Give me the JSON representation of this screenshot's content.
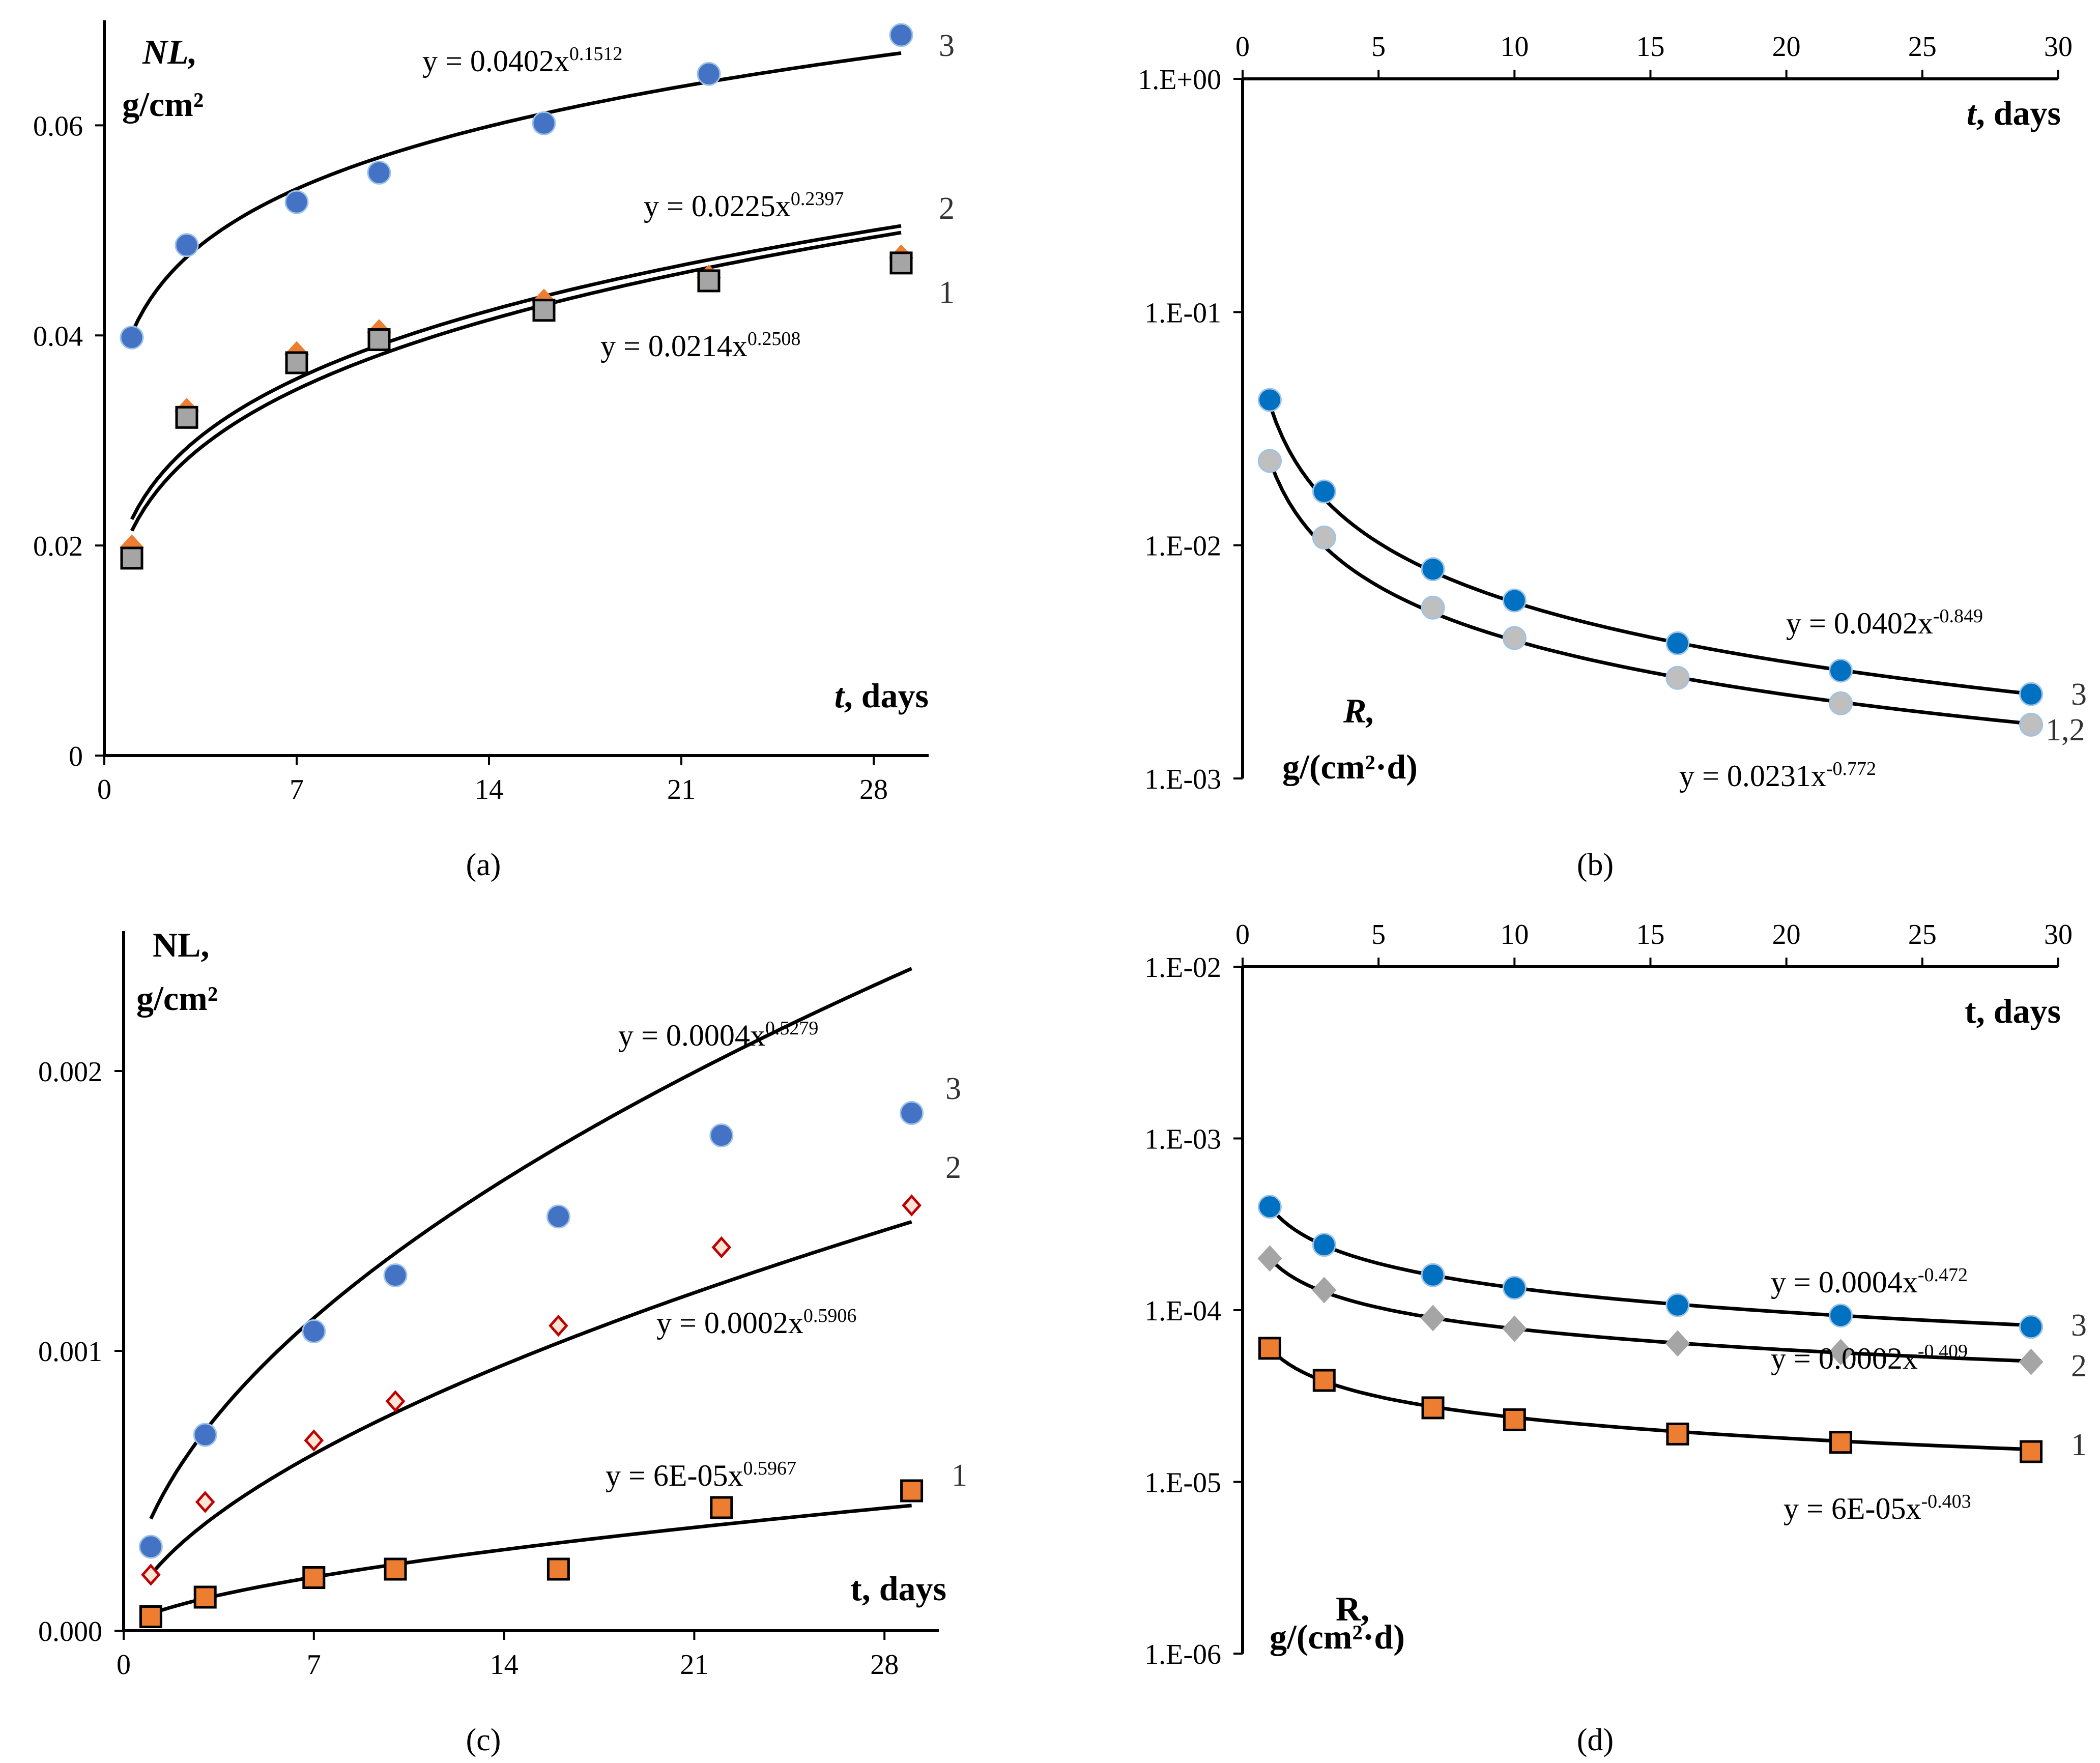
{
  "figure": {
    "panels": [
      {
        "id": "a",
        "caption": "(a)",
        "x_axis_title": "days",
        "x_axis_var": "t",
        "y_axis_title_line1": "NL,",
        "y_axis_title_line2": "g/cm²",
        "series_numbers": [
          "3",
          "2",
          "1"
        ],
        "equations": [
          {
            "base": "y = 0.0402x",
            "exp": "0.1512"
          },
          {
            "base": "y = 0.0225x",
            "exp": "0.2397"
          },
          {
            "base": "y = 0.0214x",
            "exp": "0.2508"
          }
        ]
      },
      {
        "id": "b",
        "caption": "(b)",
        "x_axis_title": "days",
        "x_axis_var": "t",
        "y_axis_title_line1": "R,",
        "y_axis_title_line2": "g/(cm²·d)",
        "series_numbers": [
          "3",
          "1,2"
        ],
        "equations": [
          {
            "base": "y = 0.0402x",
            "exp": "-0.849"
          },
          {
            "base": "y = 0.0231x",
            "exp": "-0.772"
          }
        ]
      },
      {
        "id": "c",
        "caption": "(c)",
        "x_axis_title": "t, days",
        "y_axis_title_line1": "NL,",
        "y_axis_title_line2": "g/cm²",
        "series_numbers": [
          "3",
          "2",
          "1"
        ],
        "equations": [
          {
            "base": "y = 0.0004x",
            "exp": "0.5279"
          },
          {
            "base": "y = 0.0002x",
            "exp": "0.5906"
          },
          {
            "base": "y = 6E-05x",
            "exp": "0.5967"
          }
        ]
      },
      {
        "id": "d",
        "caption": "(d)",
        "x_axis_title": "t, days",
        "y_axis_title_line1": "R,",
        "y_axis_title_line2": "g/(cm²·d)",
        "series_numbers": [
          "3",
          "2",
          "1"
        ],
        "equations": [
          {
            "base": "y = 0.0004x",
            "exp": "-0.472"
          },
          {
            "base": "y = 0.0002x",
            "exp": "-0.409"
          },
          {
            "base": "y = 6E-05x",
            "exp": "-0.403"
          }
        ]
      }
    ]
  },
  "chart_data": [
    {
      "panel": "a",
      "type": "scatter",
      "xlim": [
        0,
        30
      ],
      "ylim": [
        0,
        0.07
      ],
      "x_ticks": [
        "0",
        "7",
        "14",
        "21",
        "28"
      ],
      "y_ticks": [
        "0",
        "0.02",
        "0.04",
        "0.06"
      ],
      "scale": "linear",
      "series": [
        {
          "name": "3",
          "marker": "circle",
          "color": "#4472C4",
          "x": [
            1,
            3,
            7,
            10,
            16,
            22,
            29
          ],
          "y": [
            0.0398,
            0.0486,
            0.0527,
            0.0555,
            0.0602,
            0.0649,
            0.0686
          ],
          "fit": {
            "a": 0.0402,
            "b": 0.1512
          }
        },
        {
          "name": "2",
          "marker": "diamond",
          "color": "#ED7D31",
          "x": [
            1,
            3,
            7,
            10,
            16,
            22,
            29
          ],
          "y": [
            0.0198,
            0.0328,
            0.0382,
            0.0403,
            0.0432,
            0.0455,
            0.0474
          ],
          "fit": {
            "a": 0.0225,
            "b": 0.2397
          }
        },
        {
          "name": "1",
          "marker": "square",
          "color": "#A5A5A5",
          "x": [
            1,
            3,
            7,
            10,
            16,
            22,
            29
          ],
          "y": [
            0.0188,
            0.0322,
            0.0374,
            0.0396,
            0.0424,
            0.0452,
            0.0469
          ],
          "fit": {
            "a": 0.0214,
            "b": 0.2508
          }
        }
      ]
    },
    {
      "panel": "b",
      "type": "scatter",
      "xlim": [
        0,
        30
      ],
      "ylim": [
        0.001,
        1
      ],
      "x_ticks": [
        "0",
        "5",
        "10",
        "15",
        "20",
        "25",
        "30"
      ],
      "y_ticks": [
        "1.E-03",
        "1.E-02",
        "1.E-01",
        "1.E+00"
      ],
      "scale": "log",
      "series": [
        {
          "name": "3",
          "marker": "circle",
          "color": "#0070C0",
          "x": [
            1,
            3,
            7,
            10,
            16,
            22,
            29
          ],
          "y": [
            0.042,
            0.017,
            0.0079,
            0.0058,
            0.0038,
            0.0029,
            0.0023
          ],
          "fit": {
            "a": 0.0402,
            "b": -0.849
          }
        },
        {
          "name": "1,2",
          "marker": "circle",
          "color": "#BFBFBF",
          "x": [
            1,
            3,
            7,
            10,
            16,
            22,
            29
          ],
          "y": [
            0.023,
            0.0108,
            0.0054,
            0.004,
            0.0027,
            0.0021,
            0.0017
          ],
          "fit": {
            "a": 0.0231,
            "b": -0.772
          }
        }
      ]
    },
    {
      "panel": "c",
      "type": "scatter",
      "xlim": [
        0,
        30
      ],
      "ylim": [
        0,
        0.0025
      ],
      "x_ticks": [
        "0",
        "7",
        "14",
        "21",
        "28"
      ],
      "y_ticks": [
        "0.000",
        "0.001",
        "0.002"
      ],
      "scale": "linear",
      "series": [
        {
          "name": "3",
          "marker": "circle",
          "color": "#4472C4",
          "x": [
            1,
            3,
            7,
            10,
            16,
            22,
            29
          ],
          "y": [
            0.0003,
            0.0007,
            0.00107,
            0.00127,
            0.00148,
            0.00177,
            0.00185
          ],
          "fit": {
            "a": 0.0004,
            "b": 0.5279
          }
        },
        {
          "name": "2",
          "marker": "diamond-open",
          "color": "#C00000",
          "x": [
            1,
            3,
            7,
            10,
            16,
            22,
            29
          ],
          "y": [
            0.0002,
            0.00046,
            0.00068,
            0.00082,
            0.00109,
            0.00137,
            0.00152
          ],
          "fit": {
            "a": 0.0002,
            "b": 0.5906
          }
        },
        {
          "name": "1",
          "marker": "square",
          "color": "#ED7D31",
          "x": [
            1,
            3,
            7,
            10,
            16,
            22,
            29
          ],
          "y": [
            5e-05,
            0.00012,
            0.00019,
            0.00022,
            0.00022,
            0.00044,
            0.0005
          ],
          "fit": {
            "a": 6e-05,
            "b": 0.5967
          }
        }
      ]
    },
    {
      "panel": "d",
      "type": "scatter",
      "xlim": [
        0,
        30
      ],
      "ylim": [
        1e-06,
        0.01
      ],
      "x_ticks": [
        "0",
        "5",
        "10",
        "15",
        "20",
        "25",
        "30"
      ],
      "y_ticks": [
        "1.E-06",
        "1.E-05",
        "1.E-04",
        "1.E-03",
        "1.E-02"
      ],
      "scale": "log",
      "series": [
        {
          "name": "3",
          "marker": "circle",
          "color": "#0070C0",
          "x": [
            1,
            3,
            7,
            10,
            16,
            22,
            29
          ],
          "y": [
            0.0004,
            0.00024,
            0.00016,
            0.000135,
            0.000107,
            9.3e-05,
            8e-05
          ],
          "fit": {
            "a": 0.0004,
            "b": -0.472
          }
        },
        {
          "name": "2",
          "marker": "diamond",
          "color": "#A5A5A5",
          "x": [
            1,
            3,
            7,
            10,
            16,
            22,
            29
          ],
          "y": [
            0.0002,
            0.000131,
            9e-05,
            7.8e-05,
            6.4e-05,
            5.7e-05,
            5e-05
          ],
          "fit": {
            "a": 0.0002,
            "b": -0.409
          }
        },
        {
          "name": "1",
          "marker": "square",
          "color": "#ED7D31",
          "x": [
            1,
            3,
            7,
            10,
            16,
            22,
            29
          ],
          "y": [
            6e-05,
            3.9e-05,
            2.7e-05,
            2.3e-05,
            1.9e-05,
            1.7e-05,
            1.5e-05
          ],
          "fit": {
            "a": 6e-05,
            "b": -0.403
          }
        }
      ]
    }
  ]
}
